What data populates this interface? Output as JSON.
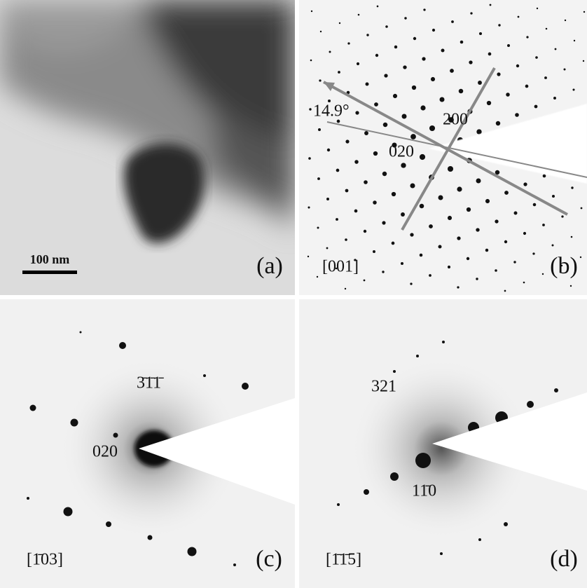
{
  "panels": [
    {
      "label": "(a)",
      "scale_bar": "100 nm"
    },
    {
      "label": "(b)",
      "zone_axis": "[001]",
      "angle": "14.9°",
      "spot_labels": [
        "200",
        "020"
      ]
    },
    {
      "label": "(c)",
      "zone_axis": "[1̄03]",
      "spot_labels": [
        "3̄1̄1̄",
        "020"
      ]
    },
    {
      "label": "(d)",
      "zone_axis": "[1̄1̄5]",
      "spot_labels": [
        "321",
        "11̄0"
      ]
    }
  ]
}
